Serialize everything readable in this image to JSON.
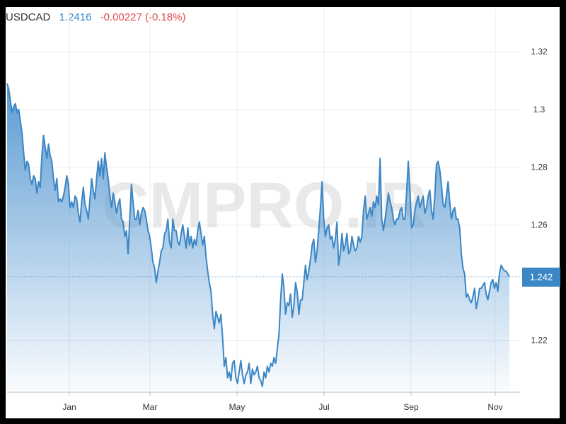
{
  "header": {
    "symbol": "USDCAD",
    "price": "1.2416",
    "change": "-0.00227 (-0.18%)"
  },
  "watermark": "CMPRO.IR",
  "price_label": "1.242",
  "colors": {
    "line": "#3b86c4",
    "fill_top": "#5b9bd3",
    "price_tag": "#3b86c4",
    "change": "#e04a4a"
  },
  "chart_data": {
    "type": "area",
    "title": "",
    "xlabel": "",
    "ylabel": "",
    "ylim": [
      1.202,
      1.335
    ],
    "grid": true,
    "x_ticks": [
      "Jan",
      "Mar",
      "May",
      "Jul",
      "Sep",
      "Nov"
    ],
    "y_ticks": [
      1.22,
      1.26,
      1.28,
      1.3,
      1.32
    ],
    "last_value": 1.242,
    "series": [
      {
        "values": [
          1.309,
          1.307,
          1.303,
          1.299,
          1.301,
          1.302,
          1.299,
          1.3,
          1.296,
          1.292,
          1.285,
          1.279,
          1.282,
          1.281,
          1.276,
          1.274,
          1.277,
          1.276,
          1.271,
          1.275,
          1.273,
          1.284,
          1.291,
          1.287,
          1.283,
          1.288,
          1.284,
          1.282,
          1.276,
          1.272,
          1.276,
          1.268,
          1.269,
          1.268,
          1.27,
          1.273,
          1.277,
          1.274,
          1.266,
          1.268,
          1.266,
          1.27,
          1.269,
          1.264,
          1.261,
          1.268,
          1.273,
          1.267,
          1.265,
          1.262,
          1.269,
          1.276,
          1.272,
          1.269,
          1.276,
          1.282,
          1.277,
          1.283,
          1.276,
          1.285,
          1.28,
          1.276,
          1.27,
          1.266,
          1.271,
          1.268,
          1.264,
          1.267,
          1.269,
          1.262,
          1.261,
          1.256,
          1.258,
          1.25,
          1.262,
          1.274,
          1.268,
          1.262,
          1.262,
          1.265,
          1.26,
          1.264,
          1.266,
          1.265,
          1.262,
          1.258,
          1.256,
          1.252,
          1.247,
          1.245,
          1.24,
          1.244,
          1.247,
          1.251,
          1.252,
          1.257,
          1.258,
          1.262,
          1.254,
          1.252,
          1.262,
          1.258,
          1.258,
          1.254,
          1.253,
          1.257,
          1.26,
          1.256,
          1.252,
          1.259,
          1.253,
          1.256,
          1.252,
          1.255,
          1.253,
          1.258,
          1.261,
          1.257,
          1.253,
          1.256,
          1.249,
          1.244,
          1.24,
          1.237,
          1.229,
          1.224,
          1.23,
          1.228,
          1.226,
          1.229,
          1.221,
          1.211,
          1.214,
          1.207,
          1.209,
          1.206,
          1.212,
          1.213,
          1.207,
          1.205,
          1.209,
          1.213,
          1.208,
          1.205,
          1.208,
          1.209,
          1.212,
          1.205,
          1.21,
          1.208,
          1.209,
          1.211,
          1.207,
          1.206,
          1.204,
          1.209,
          1.207,
          1.211,
          1.209,
          1.212,
          1.211,
          1.214,
          1.212,
          1.217,
          1.222,
          1.234,
          1.243,
          1.238,
          1.229,
          1.233,
          1.232,
          1.236,
          1.228,
          1.232,
          1.24,
          1.237,
          1.229,
          1.234,
          1.234,
          1.24,
          1.246,
          1.241,
          1.244,
          1.248,
          1.253,
          1.255,
          1.247,
          1.251,
          1.258,
          1.266,
          1.275,
          1.262,
          1.256,
          1.259,
          1.26,
          1.255,
          1.256,
          1.252,
          1.255,
          1.261,
          1.246,
          1.25,
          1.257,
          1.251,
          1.253,
          1.257,
          1.25,
          1.251,
          1.256,
          1.253,
          1.251,
          1.252,
          1.256,
          1.254,
          1.256,
          1.265,
          1.27,
          1.262,
          1.264,
          1.266,
          1.263,
          1.268,
          1.266,
          1.27,
          1.267,
          1.283,
          1.262,
          1.258,
          1.262,
          1.266,
          1.271,
          1.268,
          1.266,
          1.262,
          1.26,
          1.262,
          1.262,
          1.265,
          1.266,
          1.262,
          1.262,
          1.271,
          1.282,
          1.272,
          1.259,
          1.26,
          1.265,
          1.268,
          1.27,
          1.266,
          1.268,
          1.27,
          1.264,
          1.266,
          1.27,
          1.272,
          1.265,
          1.262,
          1.27,
          1.281,
          1.282,
          1.279,
          1.274,
          1.267,
          1.266,
          1.27,
          1.275,
          1.268,
          1.262,
          1.265,
          1.266,
          1.262,
          1.262,
          1.259,
          1.25,
          1.245,
          1.243,
          1.235,
          1.236,
          1.234,
          1.233,
          1.235,
          1.238,
          1.231,
          1.234,
          1.238,
          1.238,
          1.239,
          1.24,
          1.236,
          1.234,
          1.237,
          1.24,
          1.241,
          1.238,
          1.24,
          1.237,
          1.243,
          1.246,
          1.245,
          1.244,
          1.244,
          1.243,
          1.242
        ]
      }
    ]
  }
}
